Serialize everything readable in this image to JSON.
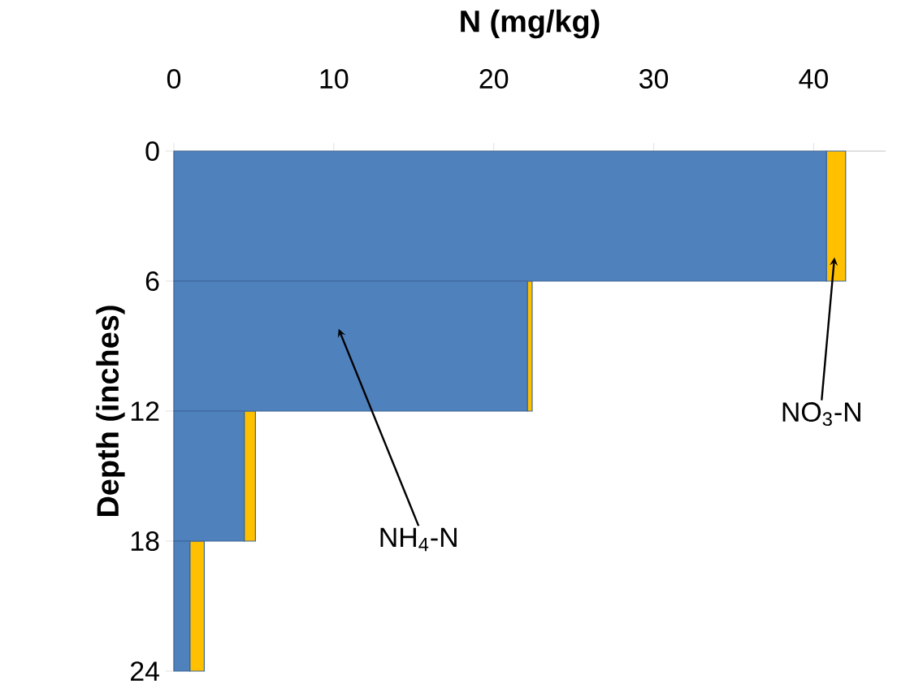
{
  "chart_data": {
    "type": "bar",
    "orientation": "horizontal",
    "stacked": true,
    "xlabel": "N (mg/kg)",
    "ylabel": "Depth (inches)",
    "x": [
      3,
      9,
      15,
      21
    ],
    "series": [
      {
        "color": "#4f81bd",
        "values": [
          40.8,
          22.1,
          4.4,
          1.0
        ]
      },
      {
        "color": "#ffc000",
        "values": [
          1.2,
          0.3,
          0.7,
          0.9
        ]
      }
    ],
    "xlim": [
      0,
      44.5
    ],
    "xticks": [
      0,
      10,
      20,
      30,
      40
    ],
    "ylim": [
      24,
      0
    ],
    "yticks": [
      0,
      6,
      12,
      18,
      24
    ],
    "annotations": [
      "NH$_{4}$-N",
      "NO$_{3}$-N"
    ]
  }
}
